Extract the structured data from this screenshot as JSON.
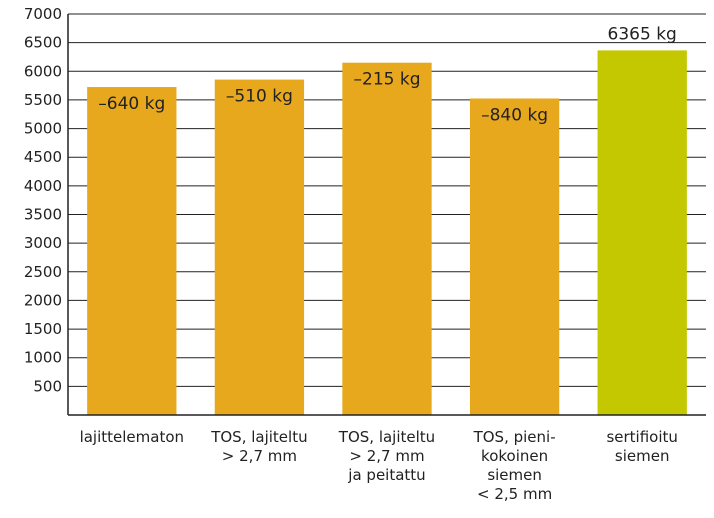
{
  "chart_data": {
    "type": "bar",
    "title": "",
    "xlabel": "",
    "ylabel": "",
    "categories": [
      [
        "lajittelematon"
      ],
      [
        "TOS, lajiteltu",
        "> 2,7 mm"
      ],
      [
        "TOS, lajiteltu",
        "> 2,7 mm",
        "ja peitattu"
      ],
      [
        "TOS, pieni-",
        "kokoinen",
        "siemen",
        "< 2,5 mm"
      ],
      [
        "sertifioitu",
        "siemen"
      ]
    ],
    "values": [
      5725,
      5855,
      6150,
      5525,
      6365
    ],
    "data_labels": [
      "–640 kg",
      "–510 kg",
      "–215 kg",
      "–840 kg",
      "6365 kg"
    ],
    "colors": [
      "#e8a81e",
      "#e8a81e",
      "#e8a81e",
      "#e8a81e",
      "#c3c800"
    ],
    "ylim": [
      0,
      7000
    ],
    "yticks": [
      500,
      1000,
      1500,
      2000,
      2500,
      3000,
      3500,
      4000,
      4500,
      5000,
      5500,
      6000,
      6500,
      7000
    ],
    "grid": true
  }
}
